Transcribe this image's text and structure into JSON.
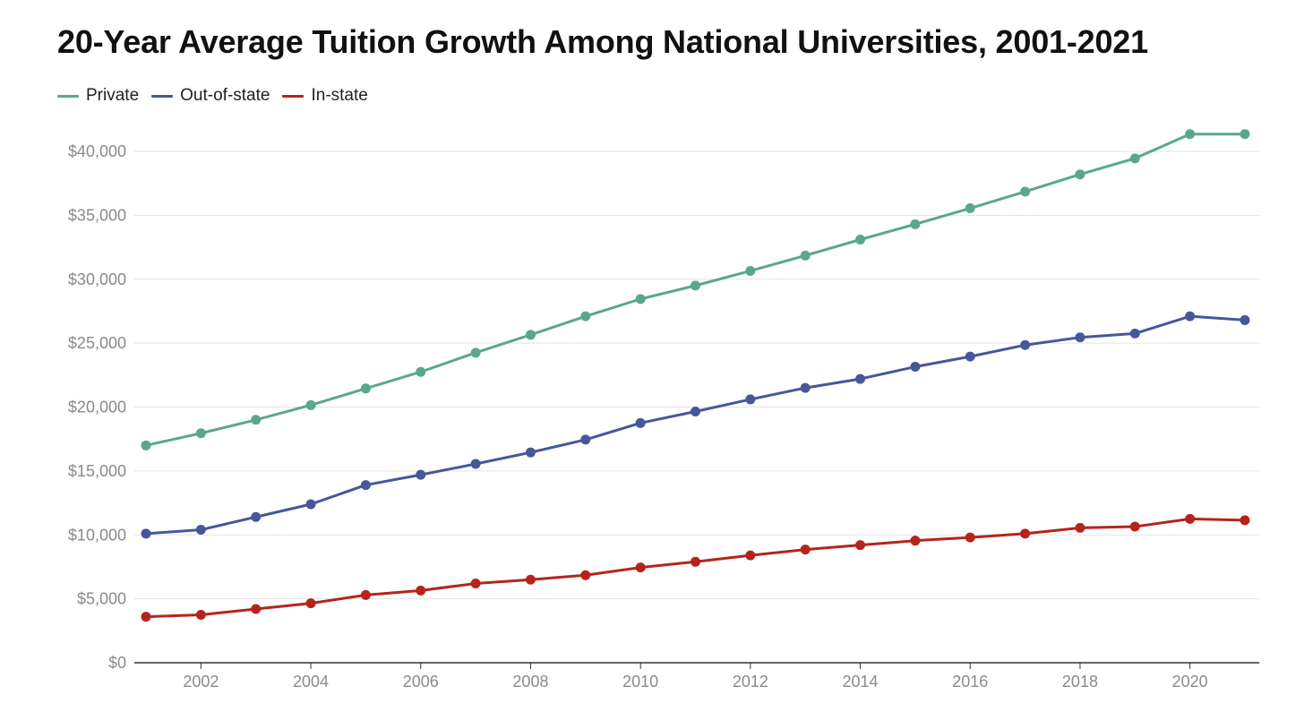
{
  "chart_data": {
    "type": "line",
    "title": "20-Year Average Tuition Growth Among National Universities, 2001-2021",
    "xlabel": "",
    "ylabel": "",
    "x": [
      2001,
      2002,
      2003,
      2004,
      2005,
      2006,
      2007,
      2008,
      2009,
      2010,
      2011,
      2012,
      2013,
      2014,
      2015,
      2016,
      2017,
      2018,
      2019,
      2020,
      2021
    ],
    "xlim": [
      2001,
      2021
    ],
    "ylim": [
      0,
      40000
    ],
    "x_ticks": [
      2002,
      2004,
      2006,
      2008,
      2010,
      2012,
      2014,
      2016,
      2018,
      2020
    ],
    "y_ticks": [
      0,
      5000,
      10000,
      15000,
      20000,
      25000,
      30000,
      35000,
      40000
    ],
    "y_tick_labels": [
      "$0",
      "$5,000",
      "$10,000",
      "$15,000",
      "$20,000",
      "$25,000",
      "$30,000",
      "$35,000",
      "$40,000"
    ],
    "grid": true,
    "legend_position": "top-left",
    "series": [
      {
        "name": "Private",
        "color": "#5aa78c",
        "values": [
          17000,
          17950,
          19000,
          20150,
          21450,
          22750,
          24250,
          25650,
          27100,
          28450,
          29500,
          30650,
          31850,
          33100,
          34300,
          35550,
          36850,
          38200,
          39450,
          41350,
          41350
        ]
      },
      {
        "name": "Out-of-state",
        "color": "#46579a",
        "values": [
          10100,
          10400,
          11400,
          12400,
          13900,
          14700,
          15550,
          16450,
          17450,
          18750,
          19650,
          20600,
          21500,
          22200,
          23150,
          23950,
          24850,
          25450,
          25750,
          27100,
          26800
        ]
      },
      {
        "name": "In-state",
        "color": "#b5241c",
        "values": [
          3600,
          3750,
          4200,
          4650,
          5300,
          5650,
          6200,
          6500,
          6850,
          7450,
          7900,
          8400,
          8850,
          9200,
          9550,
          9800,
          10100,
          10550,
          10650,
          11250,
          11150
        ]
      }
    ]
  }
}
